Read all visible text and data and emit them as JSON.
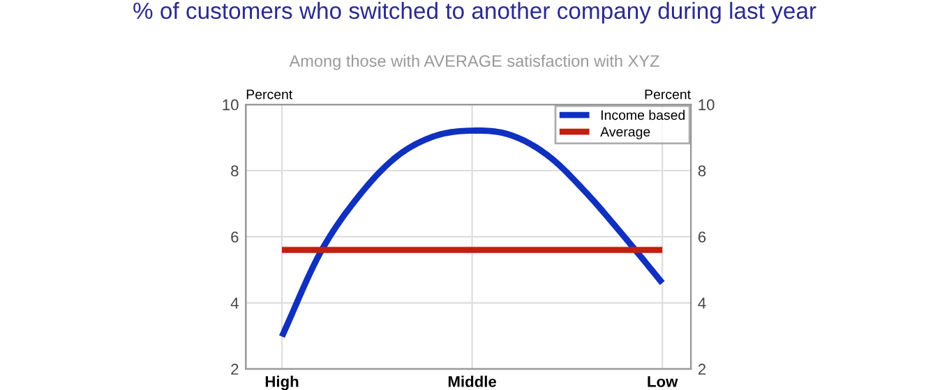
{
  "chart_data": {
    "type": "line",
    "title": "% of customers who switched to another company during last year",
    "subtitle": "Among those with AVERAGE satisfaction with XYZ",
    "ylabel": "Percent",
    "y2label": "Percent",
    "categories": [
      "High",
      null,
      null,
      null,
      null,
      "Middle",
      null,
      null,
      null,
      null,
      "Low"
    ],
    "ylim": [
      2,
      10
    ],
    "yticks": [
      2,
      4,
      6,
      8,
      10
    ],
    "y2lim": [
      2,
      10
    ],
    "y2ticks": [
      2,
      4,
      6,
      8,
      10
    ],
    "grid": true,
    "legend": "top right",
    "marker": "none",
    "line_style": "solid",
    "series": [
      {
        "name": "Income based",
        "color": "#1030c0",
        "values": [
          2.98,
          5.5,
          7.2,
          8.41,
          9.04,
          9.21,
          9.08,
          8.45,
          7.33,
          6.0,
          4.6
        ]
      },
      {
        "name": "Average",
        "color": "#c02010",
        "values": [
          5.6,
          5.6,
          5.6,
          5.6,
          5.6,
          5.6,
          5.6,
          5.6,
          5.6,
          5.6,
          5.6
        ]
      }
    ]
  }
}
